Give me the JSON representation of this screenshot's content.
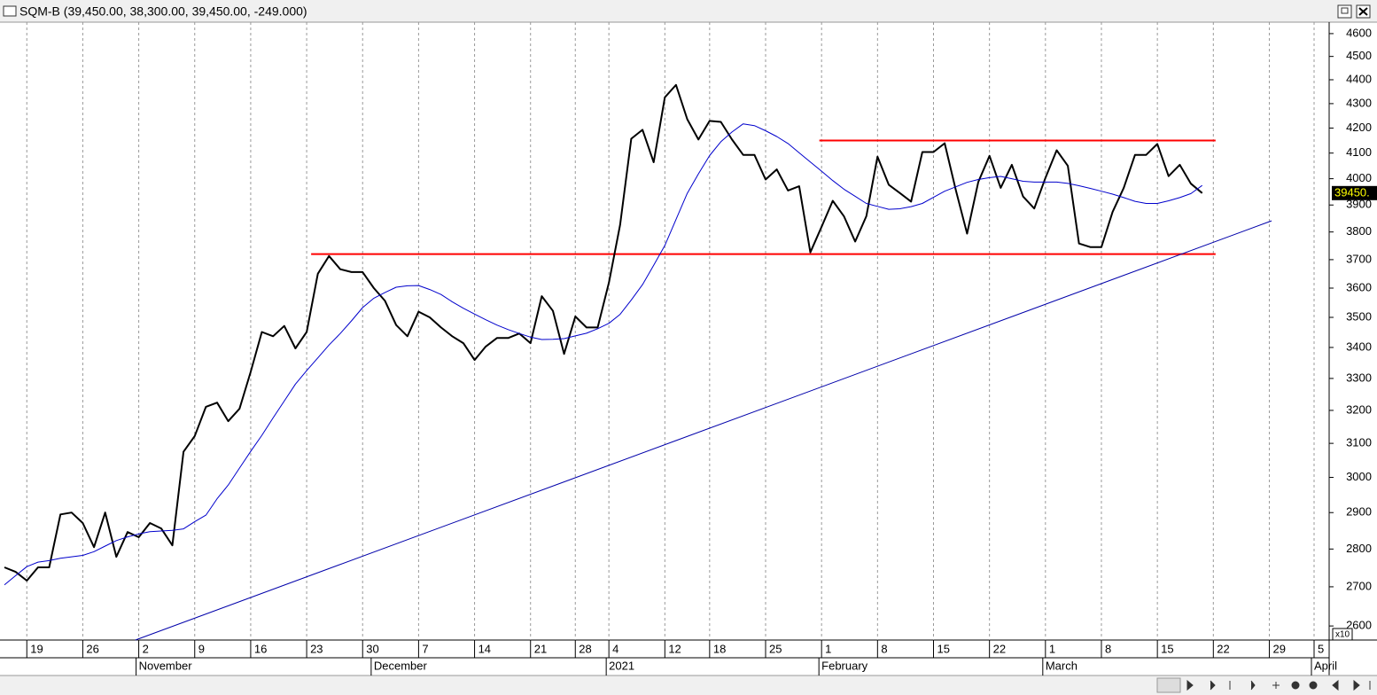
{
  "chart_data": {
    "type": "line",
    "title": "SQM-B (39,450.00, 38,300.00, 39,450.00, -249.000)",
    "log_scale": true,
    "ylim": [
      2565,
      4651
    ],
    "yticks": [
      2600,
      2700,
      2800,
      2900,
      3000,
      3100,
      3200,
      3300,
      3400,
      3500,
      3600,
      3700,
      3800,
      3900,
      4000,
      4100,
      4200,
      4300,
      4400,
      4500,
      4600
    ],
    "scale_label": "x10",
    "last_price_label": "39450.",
    "last_price": 3945,
    "categories": [
      null,
      null,
      "19",
      null,
      null,
      null,
      null,
      "26",
      null,
      null,
      null,
      null,
      "2",
      null,
      null,
      null,
      null,
      "9",
      null,
      null,
      null,
      null,
      "16",
      null,
      null,
      null,
      null,
      "23",
      null,
      null,
      null,
      null,
      "30",
      null,
      null,
      null,
      null,
      "7",
      null,
      null,
      null,
      null,
      "14",
      null,
      null,
      null,
      null,
      "21",
      null,
      null,
      null,
      "28",
      null,
      null,
      "4",
      null,
      null,
      null,
      null,
      "12",
      null,
      null,
      null,
      "18",
      null,
      null,
      null,
      null,
      "25",
      null,
      null,
      null,
      null,
      "1",
      null,
      null,
      null,
      null,
      "8",
      null,
      null,
      null,
      null,
      "15",
      null,
      null,
      null,
      null,
      "22",
      null,
      null,
      null,
      null,
      "1",
      null,
      null,
      null,
      null,
      "8",
      null,
      null,
      null,
      null,
      "15",
      null,
      null,
      null,
      null,
      "22",
      null,
      null,
      null,
      null,
      "29",
      null,
      null,
      null,
      "5"
    ],
    "month_labels": [
      null,
      null,
      null,
      null,
      null,
      null,
      null,
      null,
      null,
      null,
      null,
      null,
      "November",
      null,
      null,
      null,
      null,
      null,
      null,
      null,
      null,
      null,
      null,
      null,
      null,
      null,
      null,
      null,
      null,
      null,
      null,
      null,
      null,
      "December",
      null,
      null,
      null,
      null,
      null,
      null,
      null,
      null,
      null,
      null,
      null,
      null,
      null,
      null,
      null,
      null,
      null,
      null,
      null,
      null,
      "2021",
      null,
      null,
      null,
      null,
      null,
      null,
      null,
      null,
      null,
      null,
      null,
      null,
      null,
      null,
      null,
      null,
      null,
      null,
      "February",
      null,
      null,
      null,
      null,
      null,
      null,
      null,
      null,
      null,
      null,
      null,
      null,
      null,
      null,
      null,
      null,
      null,
      null,
      null,
      "March",
      null,
      null,
      null,
      null,
      null,
      null,
      null,
      null,
      null,
      null,
      null,
      null,
      null,
      null,
      null,
      null,
      null,
      null,
      null,
      null,
      null,
      null,
      null,
      "April"
    ],
    "series": [
      {
        "color": "#000000",
        "values": [
          2751,
          2739,
          2716,
          2751,
          2751,
          2895,
          2900,
          2871,
          2805,
          2900,
          2779,
          2846,
          2832,
          2871,
          2856,
          2810,
          3075,
          3122,
          3211,
          3224,
          3167,
          3205,
          3321,
          3451,
          3437,
          3471,
          3397,
          3451,
          3650,
          3713,
          3666,
          3656,
          3656,
          3600,
          3556,
          3474,
          3437,
          3519,
          3500,
          3466,
          3437,
          3414,
          3359,
          3403,
          3431,
          3431,
          3446,
          3414,
          3572,
          3522,
          3379,
          3503,
          3466,
          3466,
          3619,
          3826,
          4157,
          4193,
          4064,
          4326,
          4378,
          4236,
          4154,
          4229,
          4225,
          4154,
          4093,
          4093,
          3997,
          4036,
          3955,
          3971,
          3726,
          3819,
          3916,
          3858,
          3765,
          3858,
          4086,
          3977,
          3945,
          3913,
          4104,
          4104,
          4139,
          3955,
          3794,
          3987,
          4089,
          3965,
          4054,
          3932,
          3887,
          4003,
          4111,
          4050,
          3758,
          3745,
          3745,
          3874,
          3965,
          4093,
          4093,
          4136,
          4010,
          4054,
          3981,
          3945,
          null,
          null,
          null,
          null,
          null,
          null,
          null,
          null,
          null,
          null
        ]
      },
      {
        "color": "#0000cc",
        "values": [
          2705,
          2729,
          2753,
          2765,
          2769,
          2775,
          2779,
          2783,
          2793,
          2808,
          2823,
          2833,
          2841,
          2847,
          2849,
          2851,
          2855,
          2875,
          2893,
          2939,
          2978,
          3027,
          3076,
          3124,
          3177,
          3229,
          3282,
          3325,
          3366,
          3408,
          3446,
          3488,
          3533,
          3565,
          3585,
          3603,
          3608,
          3609,
          3595,
          3578,
          3553,
          3531,
          3511,
          3492,
          3474,
          3459,
          3446,
          3434,
          3426,
          3427,
          3429,
          3438,
          3447,
          3462,
          3480,
          3510,
          3559,
          3612,
          3680,
          3751,
          3846,
          3944,
          4019,
          4090,
          4145,
          4184,
          4217,
          4210,
          4189,
          4166,
          4138,
          4101,
          4065,
          4029,
          3993,
          3960,
          3933,
          3906,
          3895,
          3884,
          3886,
          3894,
          3906,
          3929,
          3952,
          3969,
          3986,
          3997,
          4004,
          4009,
          4000,
          3990,
          3987,
          3987,
          3987,
          3982,
          3973,
          3963,
          3952,
          3941,
          3928,
          3914,
          3906,
          3906,
          3916,
          3928,
          3943,
          3974,
          null,
          null,
          null,
          null,
          null,
          null,
          null,
          null,
          null,
          null
        ]
      }
    ],
    "trend_lines": [
      {
        "color": "#ff0000",
        "points": [
          [
            27.4,
            3720
          ],
          [
            108.2,
            3720
          ]
        ]
      },
      {
        "color": "#ff0000",
        "points": [
          [
            72.8,
            4150
          ],
          [
            108.2,
            4150
          ]
        ]
      },
      {
        "color": "#0000aa",
        "points": [
          [
            11.7,
            2565
          ],
          [
            113.2,
            3841
          ]
        ]
      }
    ]
  }
}
